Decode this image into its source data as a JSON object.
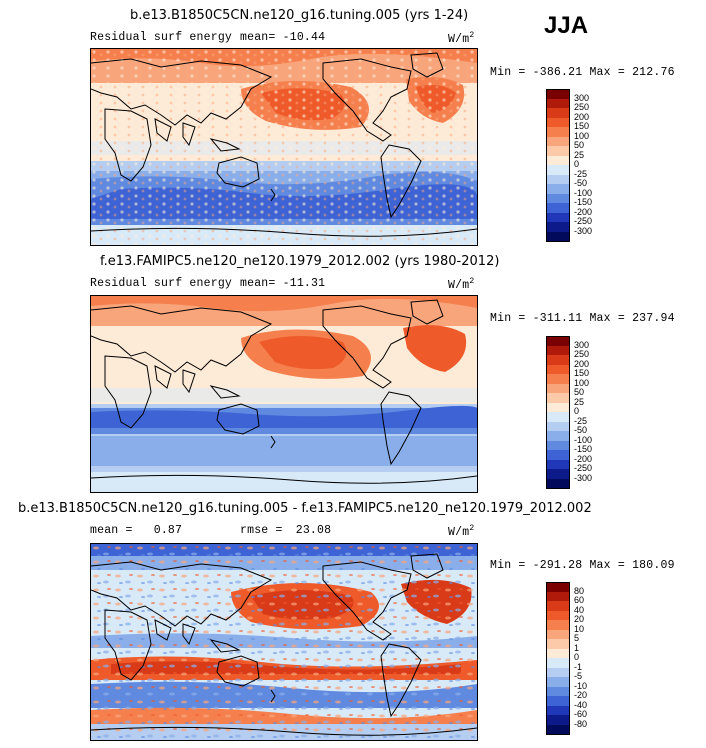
{
  "season": "JJA",
  "panels": [
    {
      "title": "b.e13.B1850C5CN.ne120_g16.tuning.005 (yrs 1-24)",
      "variable": "Residual surf energy",
      "stat1_label": "mean=",
      "stat1_value": "-10.44",
      "stat2_label": "",
      "stat2_value": "",
      "units": "W/m",
      "units_exp": "2",
      "min_label": "Min =",
      "min_value": "-386.21",
      "max_label": "Max =",
      "max_value": "212.76",
      "levels": [
        "300",
        "250",
        "200",
        "150",
        "100",
        "50",
        "25",
        "0",
        "-25",
        "-50",
        "-100",
        "-150",
        "-200",
        "-250",
        "-300"
      ]
    },
    {
      "title": "f.e13.FAMIPC5.ne120_ne120.1979_2012.002 (yrs 1980-2012)",
      "variable": "Residual surf energy",
      "stat1_label": "mean=",
      "stat1_value": "-11.31",
      "stat2_label": "",
      "stat2_value": "",
      "units": "W/m",
      "units_exp": "2",
      "min_label": "Min =",
      "min_value": "-311.11",
      "max_label": "Max =",
      "max_value": "237.94",
      "levels": [
        "300",
        "250",
        "200",
        "150",
        "100",
        "50",
        "25",
        "0",
        "-25",
        "-50",
        "-100",
        "-150",
        "-200",
        "-250",
        "-300"
      ]
    },
    {
      "title": "b.e13.B1850C5CN.ne120_g16.tuning.005 - f.e13.FAMIPC5.ne120_ne120.1979_2012.002",
      "variable": "",
      "stat1_label": "mean =",
      "stat1_value": "0.87",
      "stat2_label": "rmse =",
      "stat2_value": "23.08",
      "units": "W/m",
      "units_exp": "2",
      "min_label": "Min =",
      "min_value": "-291.28",
      "max_label": "Max =",
      "max_value": "180.09",
      "levels": [
        "80",
        "60",
        "40",
        "20",
        "10",
        "5",
        "1",
        "0",
        "-1",
        "-5",
        "-10",
        "-20",
        "-40",
        "-60",
        "-80"
      ]
    }
  ],
  "colors": {
    "palette": [
      "#7a0000",
      "#b01a0a",
      "#d93a17",
      "#ee5a2a",
      "#f5804e",
      "#f9a57c",
      "#fccaa8",
      "#fdebd8",
      "#d8e9f7",
      "#b4cdf0",
      "#8aaeea",
      "#5f8ae0",
      "#3d63d4",
      "#2038b8",
      "#0d1a8a",
      "#020a5c"
    ],
    "land_fill": "#fcdcc4",
    "coastline": "#000000"
  }
}
